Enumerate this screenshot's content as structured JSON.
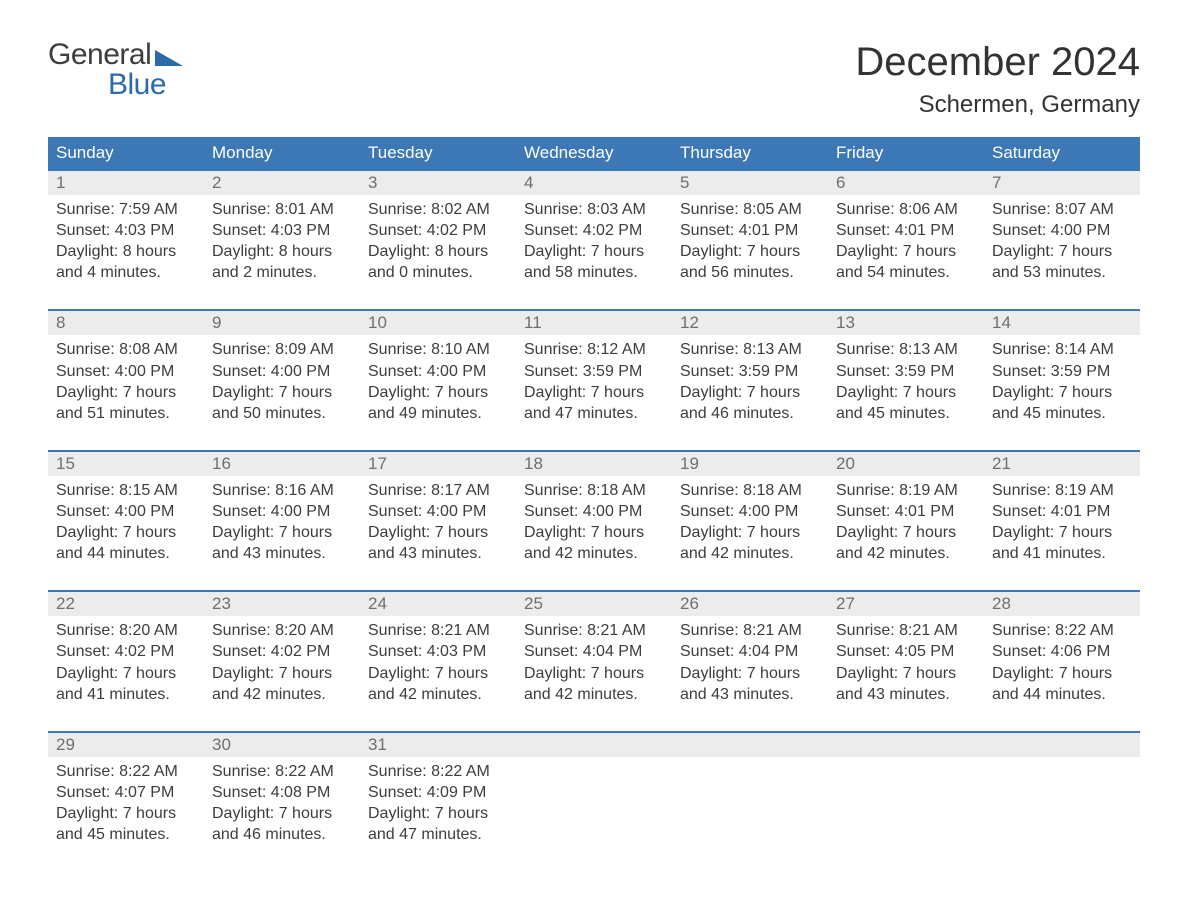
{
  "logo": {
    "text_top": "General",
    "text_bottom": "Blue",
    "top_color": "#3d3d3d",
    "bottom_color": "#2c6aa8",
    "triangle_color": "#2c6aa8"
  },
  "title": "December 2024",
  "location": "Schermen, Germany",
  "colors": {
    "header_bg": "#3b78b5",
    "header_text": "#ffffff",
    "daynum_bg": "#ececec",
    "daynum_text": "#6f6f6f",
    "body_text": "#3d3d3d",
    "rule": "#3b78b5",
    "page_bg": "#ffffff"
  },
  "typography": {
    "title_fontsize": 40,
    "location_fontsize": 24,
    "dow_fontsize": 17,
    "daynum_fontsize": 17,
    "cell_fontsize": 16
  },
  "layout": {
    "columns": 7,
    "rows": 5,
    "cell_lines": 4
  },
  "days_of_week": [
    "Sunday",
    "Monday",
    "Tuesday",
    "Wednesday",
    "Thursday",
    "Friday",
    "Saturday"
  ],
  "weeks": [
    [
      {
        "n": "1",
        "sunrise": "Sunrise: 7:59 AM",
        "sunset": "Sunset: 4:03 PM",
        "d1": "Daylight: 8 hours",
        "d2": "and 4 minutes."
      },
      {
        "n": "2",
        "sunrise": "Sunrise: 8:01 AM",
        "sunset": "Sunset: 4:03 PM",
        "d1": "Daylight: 8 hours",
        "d2": "and 2 minutes."
      },
      {
        "n": "3",
        "sunrise": "Sunrise: 8:02 AM",
        "sunset": "Sunset: 4:02 PM",
        "d1": "Daylight: 8 hours",
        "d2": "and 0 minutes."
      },
      {
        "n": "4",
        "sunrise": "Sunrise: 8:03 AM",
        "sunset": "Sunset: 4:02 PM",
        "d1": "Daylight: 7 hours",
        "d2": "and 58 minutes."
      },
      {
        "n": "5",
        "sunrise": "Sunrise: 8:05 AM",
        "sunset": "Sunset: 4:01 PM",
        "d1": "Daylight: 7 hours",
        "d2": "and 56 minutes."
      },
      {
        "n": "6",
        "sunrise": "Sunrise: 8:06 AM",
        "sunset": "Sunset: 4:01 PM",
        "d1": "Daylight: 7 hours",
        "d2": "and 54 minutes."
      },
      {
        "n": "7",
        "sunrise": "Sunrise: 8:07 AM",
        "sunset": "Sunset: 4:00 PM",
        "d1": "Daylight: 7 hours",
        "d2": "and 53 minutes."
      }
    ],
    [
      {
        "n": "8",
        "sunrise": "Sunrise: 8:08 AM",
        "sunset": "Sunset: 4:00 PM",
        "d1": "Daylight: 7 hours",
        "d2": "and 51 minutes."
      },
      {
        "n": "9",
        "sunrise": "Sunrise: 8:09 AM",
        "sunset": "Sunset: 4:00 PM",
        "d1": "Daylight: 7 hours",
        "d2": "and 50 minutes."
      },
      {
        "n": "10",
        "sunrise": "Sunrise: 8:10 AM",
        "sunset": "Sunset: 4:00 PM",
        "d1": "Daylight: 7 hours",
        "d2": "and 49 minutes."
      },
      {
        "n": "11",
        "sunrise": "Sunrise: 8:12 AM",
        "sunset": "Sunset: 3:59 PM",
        "d1": "Daylight: 7 hours",
        "d2": "and 47 minutes."
      },
      {
        "n": "12",
        "sunrise": "Sunrise: 8:13 AM",
        "sunset": "Sunset: 3:59 PM",
        "d1": "Daylight: 7 hours",
        "d2": "and 46 minutes."
      },
      {
        "n": "13",
        "sunrise": "Sunrise: 8:13 AM",
        "sunset": "Sunset: 3:59 PM",
        "d1": "Daylight: 7 hours",
        "d2": "and 45 minutes."
      },
      {
        "n": "14",
        "sunrise": "Sunrise: 8:14 AM",
        "sunset": "Sunset: 3:59 PM",
        "d1": "Daylight: 7 hours",
        "d2": "and 45 minutes."
      }
    ],
    [
      {
        "n": "15",
        "sunrise": "Sunrise: 8:15 AM",
        "sunset": "Sunset: 4:00 PM",
        "d1": "Daylight: 7 hours",
        "d2": "and 44 minutes."
      },
      {
        "n": "16",
        "sunrise": "Sunrise: 8:16 AM",
        "sunset": "Sunset: 4:00 PM",
        "d1": "Daylight: 7 hours",
        "d2": "and 43 minutes."
      },
      {
        "n": "17",
        "sunrise": "Sunrise: 8:17 AM",
        "sunset": "Sunset: 4:00 PM",
        "d1": "Daylight: 7 hours",
        "d2": "and 43 minutes."
      },
      {
        "n": "18",
        "sunrise": "Sunrise: 8:18 AM",
        "sunset": "Sunset: 4:00 PM",
        "d1": "Daylight: 7 hours",
        "d2": "and 42 minutes."
      },
      {
        "n": "19",
        "sunrise": "Sunrise: 8:18 AM",
        "sunset": "Sunset: 4:00 PM",
        "d1": "Daylight: 7 hours",
        "d2": "and 42 minutes."
      },
      {
        "n": "20",
        "sunrise": "Sunrise: 8:19 AM",
        "sunset": "Sunset: 4:01 PM",
        "d1": "Daylight: 7 hours",
        "d2": "and 42 minutes."
      },
      {
        "n": "21",
        "sunrise": "Sunrise: 8:19 AM",
        "sunset": "Sunset: 4:01 PM",
        "d1": "Daylight: 7 hours",
        "d2": "and 41 minutes."
      }
    ],
    [
      {
        "n": "22",
        "sunrise": "Sunrise: 8:20 AM",
        "sunset": "Sunset: 4:02 PM",
        "d1": "Daylight: 7 hours",
        "d2": "and 41 minutes."
      },
      {
        "n": "23",
        "sunrise": "Sunrise: 8:20 AM",
        "sunset": "Sunset: 4:02 PM",
        "d1": "Daylight: 7 hours",
        "d2": "and 42 minutes."
      },
      {
        "n": "24",
        "sunrise": "Sunrise: 8:21 AM",
        "sunset": "Sunset: 4:03 PM",
        "d1": "Daylight: 7 hours",
        "d2": "and 42 minutes."
      },
      {
        "n": "25",
        "sunrise": "Sunrise: 8:21 AM",
        "sunset": "Sunset: 4:04 PM",
        "d1": "Daylight: 7 hours",
        "d2": "and 42 minutes."
      },
      {
        "n": "26",
        "sunrise": "Sunrise: 8:21 AM",
        "sunset": "Sunset: 4:04 PM",
        "d1": "Daylight: 7 hours",
        "d2": "and 43 minutes."
      },
      {
        "n": "27",
        "sunrise": "Sunrise: 8:21 AM",
        "sunset": "Sunset: 4:05 PM",
        "d1": "Daylight: 7 hours",
        "d2": "and 43 minutes."
      },
      {
        "n": "28",
        "sunrise": "Sunrise: 8:22 AM",
        "sunset": "Sunset: 4:06 PM",
        "d1": "Daylight: 7 hours",
        "d2": "and 44 minutes."
      }
    ],
    [
      {
        "n": "29",
        "sunrise": "Sunrise: 8:22 AM",
        "sunset": "Sunset: 4:07 PM",
        "d1": "Daylight: 7 hours",
        "d2": "and 45 minutes."
      },
      {
        "n": "30",
        "sunrise": "Sunrise: 8:22 AM",
        "sunset": "Sunset: 4:08 PM",
        "d1": "Daylight: 7 hours",
        "d2": "and 46 minutes."
      },
      {
        "n": "31",
        "sunrise": "Sunrise: 8:22 AM",
        "sunset": "Sunset: 4:09 PM",
        "d1": "Daylight: 7 hours",
        "d2": "and 47 minutes."
      },
      null,
      null,
      null,
      null
    ]
  ]
}
